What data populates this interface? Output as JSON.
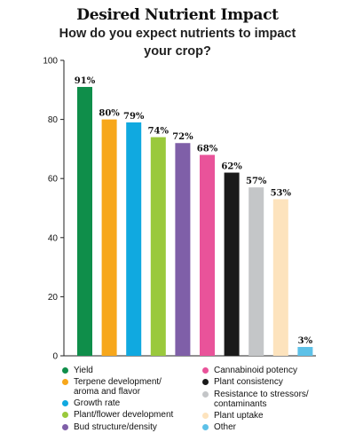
{
  "chart_data": {
    "type": "bar",
    "title": "Desired Nutrient Impact",
    "subtitle": "How do you expect nutrients to impact your crop?",
    "categories": [
      "Yield",
      "Terpene development/ aroma and flavor",
      "Growth rate",
      "Plant/flower development",
      "Bud structure/density",
      "Cannabinoid potency",
      "Plant consistency",
      "Resistance to stressors/ contaminants",
      "Plant uptake",
      "Other"
    ],
    "values": [
      91,
      80,
      79,
      74,
      72,
      68,
      62,
      57,
      53,
      3
    ],
    "value_labels": [
      "91%",
      "80%",
      "79%",
      "74%",
      "72%",
      "68%",
      "62%",
      "57%",
      "53%",
      "3%"
    ],
    "colors": [
      "#0f8e4a",
      "#f7a71b",
      "#10a9e0",
      "#9ac93c",
      "#7f5fa8",
      "#e9539a",
      "#1a1a1a",
      "#c4c6c8",
      "#fde3bd",
      "#5dc1e8"
    ],
    "yticks": [
      "0",
      "20",
      "40",
      "60",
      "80",
      "100"
    ],
    "ylim": [
      0,
      100
    ],
    "xlabel": "",
    "ylabel": "",
    "grid": false,
    "legend_position": "bottom"
  },
  "legend": {
    "items": [
      {
        "label": "Yield",
        "color": "#0f8e4a"
      },
      {
        "label": "Terpene development/\naroma and flavor",
        "color": "#f7a71b"
      },
      {
        "label": "Growth rate",
        "color": "#10a9e0"
      },
      {
        "label": "Plant/flower development",
        "color": "#9ac93c"
      },
      {
        "label": "Bud structure/density",
        "color": "#7f5fa8"
      },
      {
        "label": "Cannabinoid potency",
        "color": "#e9539a"
      },
      {
        "label": "Plant consistency",
        "color": "#1a1a1a"
      },
      {
        "label": "Resistance to stressors/\ncontaminants",
        "color": "#c4c6c8"
      },
      {
        "label": "Plant uptake",
        "color": "#fde3bd"
      },
      {
        "label": "Other",
        "color": "#5dc1e8"
      }
    ]
  }
}
